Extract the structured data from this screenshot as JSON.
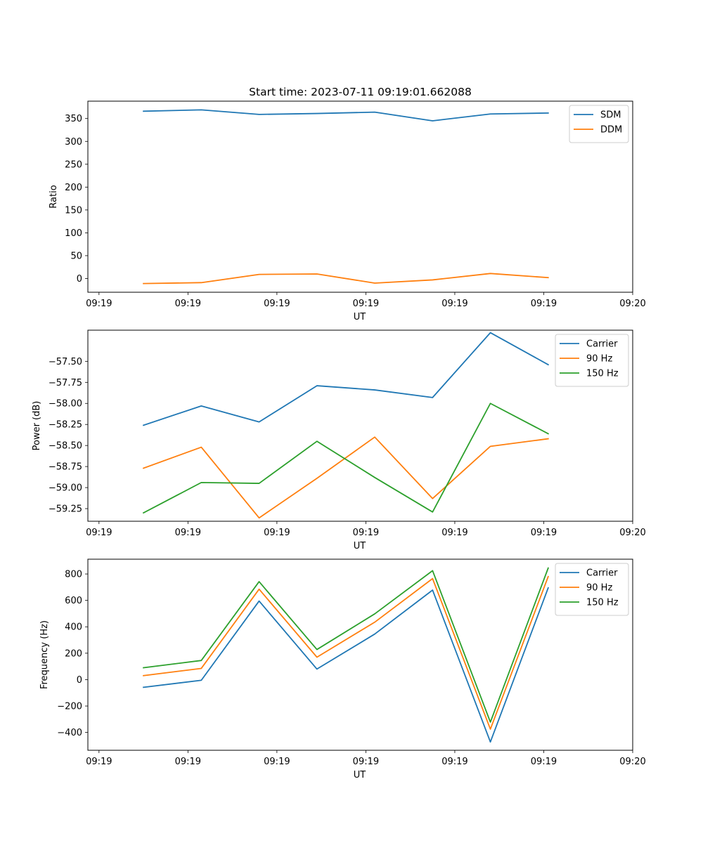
{
  "figure_title": "Start time: 2023-07-11 09:19:01.662088",
  "colors": {
    "blue": "#1f77b4",
    "orange": "#ff7f0e",
    "green": "#2ca02c"
  },
  "chart_data": [
    {
      "type": "line",
      "title": "Start time: 2023-07-11 09:19:01.662088",
      "xlabel": "UT",
      "ylabel": "Ratio",
      "x_tick_labels": [
        "09:19",
        "09:19",
        "09:19",
        "09:19",
        "09:19",
        "09:19",
        "09:20"
      ],
      "xlim": [
        -0.125,
        6.0
      ],
      "ylim": [
        -30,
        388
      ],
      "yticks": [
        0,
        50,
        100,
        150,
        200,
        250,
        300,
        350
      ],
      "y_tick_labels": [
        "0",
        "50",
        "100",
        "150",
        "200",
        "250",
        "300",
        "350"
      ],
      "x": [
        0.5,
        1.15,
        1.8,
        2.45,
        3.1,
        3.75,
        4.4,
        5.05
      ],
      "legend_position": "upper right",
      "series": [
        {
          "name": "SDM",
          "color": "#1f77b4",
          "values": [
            366,
            369,
            359,
            361,
            364,
            345,
            360,
            362
          ]
        },
        {
          "name": "DDM",
          "color": "#ff7f0e",
          "values": [
            -11,
            -9,
            9,
            10,
            -10,
            -3,
            11,
            2
          ]
        }
      ]
    },
    {
      "type": "line",
      "title": "",
      "xlabel": "UT",
      "ylabel": "Power (dB)",
      "x_tick_labels": [
        "09:19",
        "09:19",
        "09:19",
        "09:19",
        "09:19",
        "09:19",
        "09:20"
      ],
      "xlim": [
        -0.125,
        6.0
      ],
      "ylim": [
        -59.4,
        -57.13
      ],
      "yticks": [
        -59.25,
        -59.0,
        -58.75,
        -58.5,
        -58.25,
        -58.0,
        -57.75,
        -57.5
      ],
      "y_tick_labels": [
        "−59.25",
        "−59.00",
        "−58.75",
        "−58.50",
        "−58.25",
        "−58.00",
        "−57.75",
        "−57.50"
      ],
      "x": [
        0.5,
        1.15,
        1.8,
        2.45,
        3.1,
        3.75,
        4.4,
        5.05
      ],
      "legend_position": "upper right",
      "series": [
        {
          "name": "Carrier",
          "color": "#1f77b4",
          "values": [
            -58.26,
            -58.03,
            -58.22,
            -57.79,
            -57.84,
            -57.93,
            -57.16,
            -57.54
          ]
        },
        {
          "name": "90 Hz",
          "color": "#ff7f0e",
          "values": [
            -58.77,
            -58.52,
            -59.36,
            -58.89,
            -58.4,
            -59.13,
            -58.51,
            -58.42
          ]
        },
        {
          "name": "150 Hz",
          "color": "#2ca02c",
          "values": [
            -59.3,
            -58.94,
            -58.95,
            -58.45,
            -58.88,
            -59.29,
            -58.0,
            -58.36
          ]
        }
      ]
    },
    {
      "type": "line",
      "title": "",
      "xlabel": "UT",
      "ylabel": "Frequency (Hz)",
      "x_tick_labels": [
        "09:19",
        "09:19",
        "09:19",
        "09:19",
        "09:19",
        "09:19",
        "09:20"
      ],
      "xlim": [
        -0.125,
        6.0
      ],
      "ylim": [
        -535,
        912
      ],
      "yticks": [
        -400,
        -200,
        0,
        200,
        400,
        600,
        800
      ],
      "y_tick_labels": [
        "−400",
        "−200",
        "0",
        "200",
        "400",
        "600",
        "800"
      ],
      "x": [
        0.5,
        1.15,
        1.8,
        2.45,
        3.1,
        3.75,
        4.4,
        5.05
      ],
      "legend_position": "upper right",
      "series": [
        {
          "name": "Carrier",
          "color": "#1f77b4",
          "values": [
            -58,
            -5,
            595,
            80,
            345,
            678,
            -472,
            695
          ]
        },
        {
          "name": "90 Hz",
          "color": "#ff7f0e",
          "values": [
            30,
            85,
            685,
            170,
            435,
            765,
            -375,
            780
          ]
        },
        {
          "name": "150 Hz",
          "color": "#2ca02c",
          "values": [
            90,
            145,
            742,
            228,
            498,
            825,
            -322,
            845
          ]
        }
      ]
    }
  ]
}
